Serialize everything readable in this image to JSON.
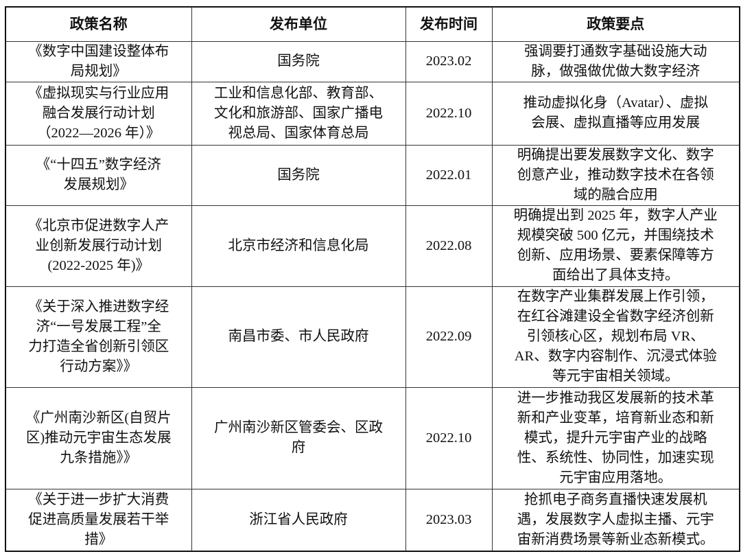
{
  "headers": [
    "政策名称",
    "发布单位",
    "发布时间",
    "政策要点"
  ],
  "rows": [
    {
      "name": [
        "《数字中国建设整体布",
        "局规划》"
      ],
      "issuer": [
        "国务院"
      ],
      "date": "2023.02",
      "points": [
        "强调要打通数字基础设施大动",
        "脉，做强做优做大数字经济"
      ]
    },
    {
      "name": [
        "《虚拟现实与行业应用",
        "融合发展行动计划",
        "（2022—2026 年）》"
      ],
      "issuer": [
        "工业和信息化部、教育部、",
        "文化和旅游部、国家广播电",
        "视总局、国家体育总局"
      ],
      "date": "2022.10",
      "points": [
        "推动虚拟化身（Avatar）、虚拟",
        "会展、虚拟直播等应用发展"
      ]
    },
    {
      "name": [
        "《“十四五”数字经济",
        "发展规划》"
      ],
      "issuer": [
        "国务院"
      ],
      "date": "2022.01",
      "points": [
        "明确提出要发展数字文化、数字",
        "创意产业，推动数字技术在各领",
        "域的融合应用"
      ]
    },
    {
      "name": [
        "《北京市促进数字人产",
        "业创新发展行动计划",
        "(2022-2025 年)》"
      ],
      "issuer": [
        "北京市经济和信息化局"
      ],
      "date": "2022.08",
      "points": [
        "明确提出到 2025 年，数字人产业",
        "规模突破 500 亿元，并围绕技术",
        "创新、应用场景、要素保障等方",
        "面给出了具体支持。"
      ]
    },
    {
      "name": [
        "《关于深入推进数字经",
        "济“一号发展工程”全",
        "力打造全省创新引领区",
        "行动方案》》"
      ],
      "issuer": [
        "南昌市委、市人民政府"
      ],
      "date": "2022.09",
      "points": [
        "在数字产业集群发展上作引领，",
        "在红谷滩建设全省数字经济创新",
        "引领核心区，规划布局 VR、",
        "AR、数字内容制作、沉浸式体验",
        "等元宇宙相关领域。"
      ]
    },
    {
      "name": [
        "《广州南沙新区(自贸片",
        "区)推动元宇宙生态发展",
        "九条措施》》"
      ],
      "issuer": [
        "广州南沙新区管委会、区政",
        "府"
      ],
      "date": "2022.10",
      "points": [
        "进一步推动我区发展新的技术革",
        "新和产业变革，培育新业态和新",
        "模式，提升元宇宙产业的战略",
        "性、系统性、协同性，加速实现",
        "元宇宙应用落地。"
      ]
    },
    {
      "name": [
        "《关于进一步扩大消费",
        "促进高质量发展若干举",
        "措》"
      ],
      "issuer": [
        "浙江省人民政府"
      ],
      "date": "2023.03",
      "points": [
        "抢抓电子商务直播快速发展机",
        "遇，发展数字人虚拟主播、元宇",
        "宙新消费场景等新业态新模式。"
      ]
    }
  ]
}
